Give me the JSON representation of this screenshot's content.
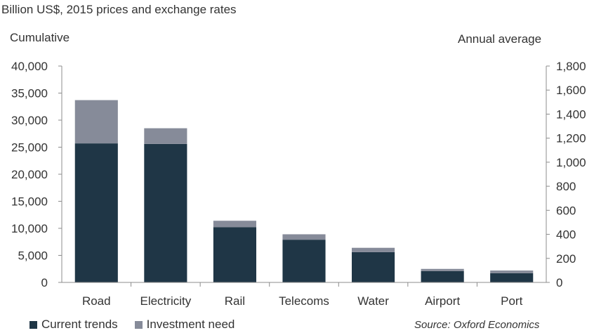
{
  "chart_data": {
    "type": "bar",
    "stacked": true,
    "subtitle": "Billion US$, 2015 prices and exchange rates",
    "left_axis_title": "Cumulative",
    "right_axis_title": "Annual average",
    "categories": [
      "Road",
      "Electricity",
      "Rail",
      "Telecoms",
      "Water",
      "Airport",
      "Port"
    ],
    "series": [
      {
        "name": "Current trends",
        "color": "#1f3646",
        "values": [
          25700,
          25600,
          10200,
          7900,
          5600,
          2100,
          1700
        ]
      },
      {
        "name": "Investment need",
        "color": "#868b99",
        "values": [
          8000,
          2900,
          1200,
          1000,
          800,
          400,
          500
        ]
      }
    ],
    "ylim_left": [
      0,
      40000
    ],
    "yticks_left": [
      0,
      5000,
      10000,
      15000,
      20000,
      25000,
      30000,
      35000,
      40000
    ],
    "yticks_left_labels": [
      "0",
      "5,000",
      "10,000",
      "15,000",
      "20,000",
      "25,000",
      "30,000",
      "35,000",
      "40,000"
    ],
    "ylim_right": [
      0,
      1800
    ],
    "yticks_right": [
      0,
      200,
      400,
      600,
      800,
      1000,
      1200,
      1400,
      1600,
      1800
    ],
    "yticks_right_labels": [
      "0",
      "200",
      "400",
      "600",
      "800",
      "1,000",
      "1,200",
      "1,400",
      "1,600",
      "1,800"
    ],
    "legend_position": "bottom-left",
    "grid": false,
    "source": "Source: Oxford Economics"
  }
}
